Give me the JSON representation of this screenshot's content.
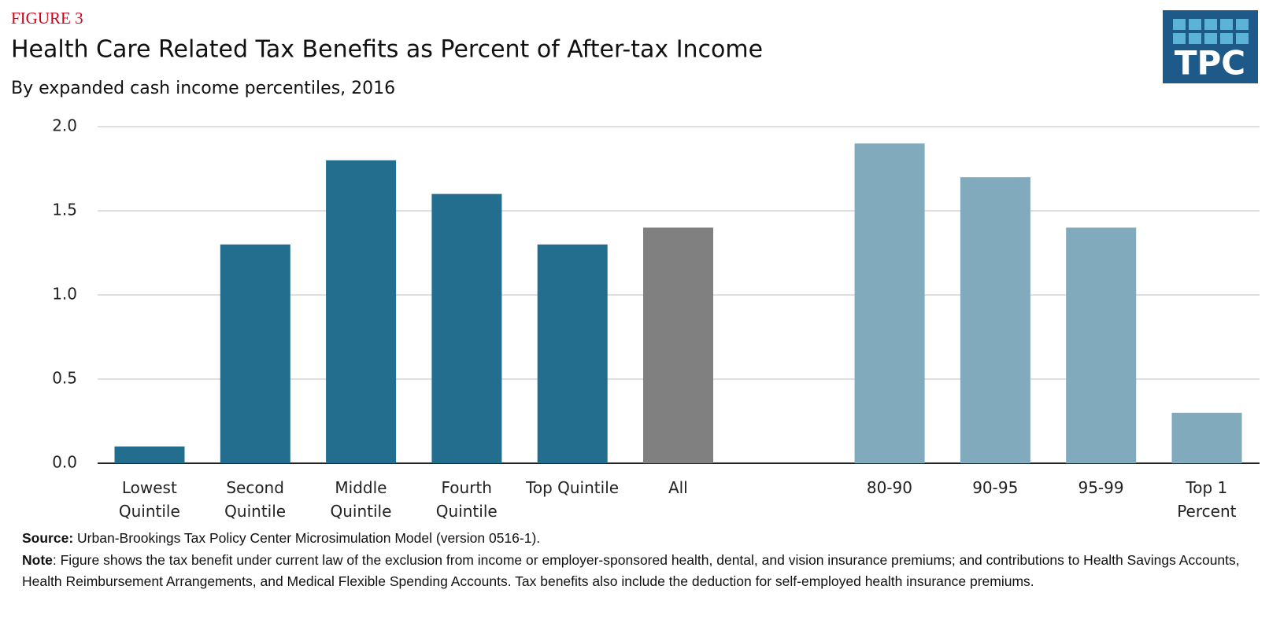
{
  "chart_data": {
    "type": "bar",
    "figure_label": "FIGURE 3",
    "title": "Health Care Related Tax Benefits as Percent of After-tax Income",
    "subtitle": "By expanded cash income percentiles, 2016",
    "logo": "TPC",
    "categories": [
      "Lowest\nQuintile",
      "Second\nQuintile",
      "Middle\nQuintile",
      "Fourth\nQuintile",
      "Top Quintile",
      "All",
      null,
      "80-90",
      "90-95",
      "95-99",
      "Top 1\nPercent"
    ],
    "values": [
      0.1,
      1.3,
      1.8,
      1.6,
      1.3,
      1.4,
      null,
      1.9,
      1.7,
      1.4,
      0.3
    ],
    "colors": [
      "#236d8e",
      "#236d8e",
      "#236d8e",
      "#236d8e",
      "#236d8e",
      "#808080",
      null,
      "#82aabd",
      "#82aabd",
      "#82aabd",
      "#82aabd"
    ],
    "ylim": [
      0,
      2
    ],
    "yticks": [
      {
        "value": 0,
        "label": "0.0"
      },
      0.5,
      {
        "value": 1,
        "label": "1.0"
      },
      1.5,
      {
        "value": 2,
        "label": "2.0"
      }
    ],
    "grid": true,
    "source_label": "Source:",
    "source": "Urban-Brookings Tax Policy Center Microsimulation Model (version 0516-1).",
    "note_label": "Note",
    "note": ":  Figure shows the tax benefit under current law of the exclusion from income or employer-sponsored health, dental, and vision insurance premiums; and contributions to Health Savings Accounts, Health Reimbursement Arrangements, and Medical Flexible Spending Accounts. Tax benefits also include the deduction for self-employed health insurance premiums."
  }
}
